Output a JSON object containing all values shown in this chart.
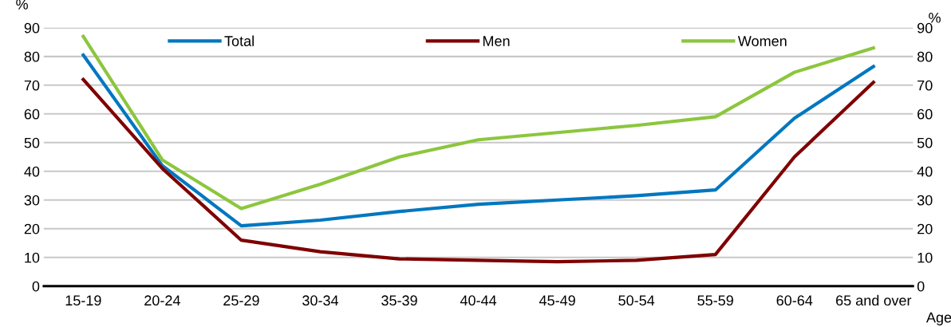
{
  "chart_data": {
    "type": "line",
    "xlabel": "Age",
    "ylabel": "%",
    "y2label": "%",
    "categories": [
      "15-19",
      "20-24",
      "25-29",
      "30-34",
      "35-39",
      "40-44",
      "45-49",
      "50-54",
      "55-59",
      "60-64",
      "65 and over"
    ],
    "series": [
      {
        "name": "Total",
        "color": "#0077c0",
        "values": [
          80.5,
          42,
          21,
          23,
          26,
          28.5,
          30,
          31.5,
          33.5,
          58.5,
          76.5
        ]
      },
      {
        "name": "Men",
        "color": "#7f0000",
        "values": [
          72,
          41,
          16,
          12,
          9.5,
          9,
          8.5,
          9,
          11,
          45,
          71
        ]
      },
      {
        "name": "Women",
        "color": "#8cc63e",
        "values": [
          87,
          44,
          27,
          35.5,
          45,
          51,
          53.5,
          56,
          59,
          74.5,
          83
        ]
      }
    ],
    "ylim": [
      0,
      90
    ],
    "yticks": [
      0,
      10,
      20,
      30,
      40,
      50,
      60,
      70,
      80,
      90
    ],
    "y2lim": [
      0,
      90
    ],
    "y2ticks": [
      0,
      10,
      20,
      30,
      40,
      50,
      60,
      70,
      80,
      90
    ],
    "grid": "y",
    "legend": "top",
    "marker": "none",
    "line_style": "solid"
  }
}
